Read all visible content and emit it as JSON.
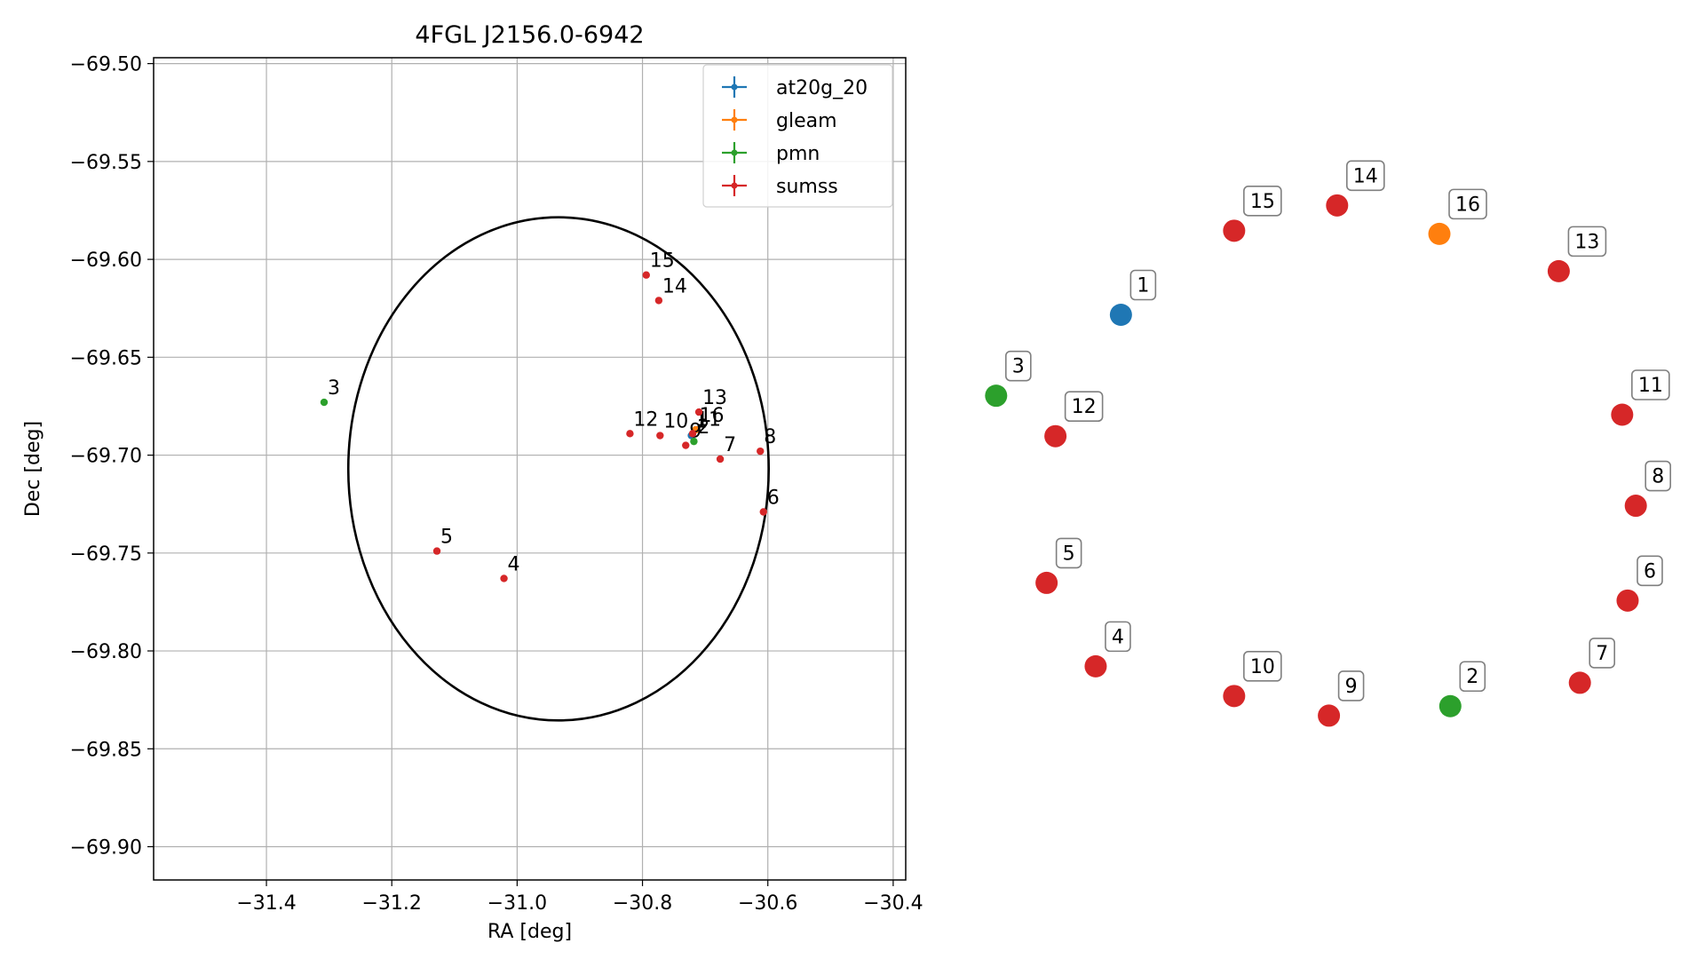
{
  "chart_data": [
    {
      "type": "scatter",
      "title": "4FGL J2156.0-6942",
      "xlabel": "RA [deg]",
      "ylabel": "Dec [deg]",
      "xlim": [
        -31.58,
        -30.38
      ],
      "ylim": [
        -69.917,
        -69.497
      ],
      "x_ticks": [
        -31.4,
        -31.2,
        -31.0,
        -30.8,
        -30.6,
        -30.4
      ],
      "x_tick_labels": [
        "−31.4",
        "−31.2",
        "−31.0",
        "−30.8",
        "−30.6",
        "−30.4"
      ],
      "y_ticks": [
        -69.5,
        -69.55,
        -69.6,
        -69.65,
        -69.7,
        -69.75,
        -69.8,
        -69.85,
        -69.9
      ],
      "y_tick_labels": [
        "−69.50",
        "−69.55",
        "−69.60",
        "−69.65",
        "−69.70",
        "−69.75",
        "−69.80",
        "−69.85",
        "−69.90"
      ],
      "grid": true,
      "legend_position": "top-right",
      "colors": {
        "at20g_20": "#1f77b4",
        "gleam": "#ff7f0e",
        "pmn": "#2ca02c",
        "sumss": "#d62728"
      },
      "legend": [
        "at20g_20",
        "gleam",
        "pmn",
        "sumss"
      ],
      "ellipse": {
        "center": [
          -30.934,
          -69.707
        ],
        "semi_axis_ra": 0.3354,
        "semi_axis_dec": 0.1285,
        "color": "#000000"
      },
      "series": [
        {
          "name": "at20g_20",
          "points": [
            {
              "label": "1",
              "x": -30.722,
              "y": -69.69
            }
          ]
        },
        {
          "name": "gleam",
          "points": [
            {
              "label": "16",
              "x": -30.715,
              "y": -69.687
            }
          ]
        },
        {
          "name": "pmn",
          "points": [
            {
              "label": "2",
              "x": -30.718,
              "y": -69.693
            },
            {
              "label": "3",
              "x": -31.308,
              "y": -69.673
            }
          ]
        },
        {
          "name": "sumss",
          "points": [
            {
              "label": "4",
              "x": -31.021,
              "y": -69.763
            },
            {
              "label": "5",
              "x": -31.128,
              "y": -69.749
            },
            {
              "label": "6",
              "x": -30.607,
              "y": -69.729
            },
            {
              "label": "7",
              "x": -30.676,
              "y": -69.702
            },
            {
              "label": "8",
              "x": -30.612,
              "y": -69.698
            },
            {
              "label": "9",
              "x": -30.731,
              "y": -69.695
            },
            {
              "label": "10",
              "x": -30.772,
              "y": -69.69
            },
            {
              "label": "11",
              "x": -30.72,
              "y": -69.689
            },
            {
              "label": "12",
              "x": -30.82,
              "y": -69.689
            },
            {
              "label": "13",
              "x": -30.71,
              "y": -69.678
            },
            {
              "label": "14",
              "x": -30.774,
              "y": -69.621
            },
            {
              "label": "15",
              "x": -30.794,
              "y": -69.608
            }
          ]
        }
      ]
    },
    {
      "type": "scatter",
      "title": "",
      "grid": false,
      "points": [
        {
          "label": "1",
          "series": "at20g_20",
          "x": 0.214,
          "y": 0.724
        },
        {
          "label": "2",
          "series": "pmn",
          "x": 0.697,
          "y": 0.105
        },
        {
          "label": "3",
          "series": "pmn",
          "x": 0.031,
          "y": 0.596
        },
        {
          "label": "4",
          "series": "sumss",
          "x": 0.177,
          "y": 0.168
        },
        {
          "label": "5",
          "series": "sumss",
          "x": 0.105,
          "y": 0.3
        },
        {
          "label": "6",
          "series": "sumss",
          "x": 0.957,
          "y": 0.272
        },
        {
          "label": "7",
          "series": "sumss",
          "x": 0.887,
          "y": 0.142
        },
        {
          "label": "8",
          "series": "sumss",
          "x": 0.969,
          "y": 0.422
        },
        {
          "label": "9",
          "series": "sumss",
          "x": 0.519,
          "y": 0.09
        },
        {
          "label": "10",
          "series": "sumss",
          "x": 0.38,
          "y": 0.121
        },
        {
          "label": "11",
          "series": "sumss",
          "x": 0.949,
          "y": 0.566
        },
        {
          "label": "12",
          "series": "sumss",
          "x": 0.118,
          "y": 0.532
        },
        {
          "label": "13",
          "series": "sumss",
          "x": 0.856,
          "y": 0.793
        },
        {
          "label": "14",
          "series": "sumss",
          "x": 0.531,
          "y": 0.897
        },
        {
          "label": "15",
          "series": "sumss",
          "x": 0.38,
          "y": 0.857
        },
        {
          "label": "16",
          "series": "gleam",
          "x": 0.681,
          "y": 0.852
        }
      ]
    }
  ]
}
